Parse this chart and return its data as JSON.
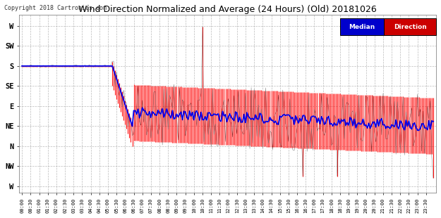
{
  "title": "Wind Direction Normalized and Average (24 Hours) (Old) 20181026",
  "copyright": "Copyright 2018 Cartronics.com",
  "background_color": "#ffffff",
  "plot_bg_color": "#ffffff",
  "grid_color": "#aaaaaa",
  "y_labels": [
    "W",
    "SW",
    "S",
    "SE",
    "E",
    "NE",
    "N",
    "NW",
    "W"
  ],
  "y_values": [
    360,
    315,
    270,
    225,
    180,
    135,
    90,
    45,
    0
  ],
  "ylim_min": -15,
  "ylim_max": 385,
  "line_color_median": "#0000ee",
  "line_color_direction": "#ff0000",
  "line_color_raw": "#333333",
  "legend_median_bg": "#0000cc",
  "legend_direction_bg": "#cc0000"
}
